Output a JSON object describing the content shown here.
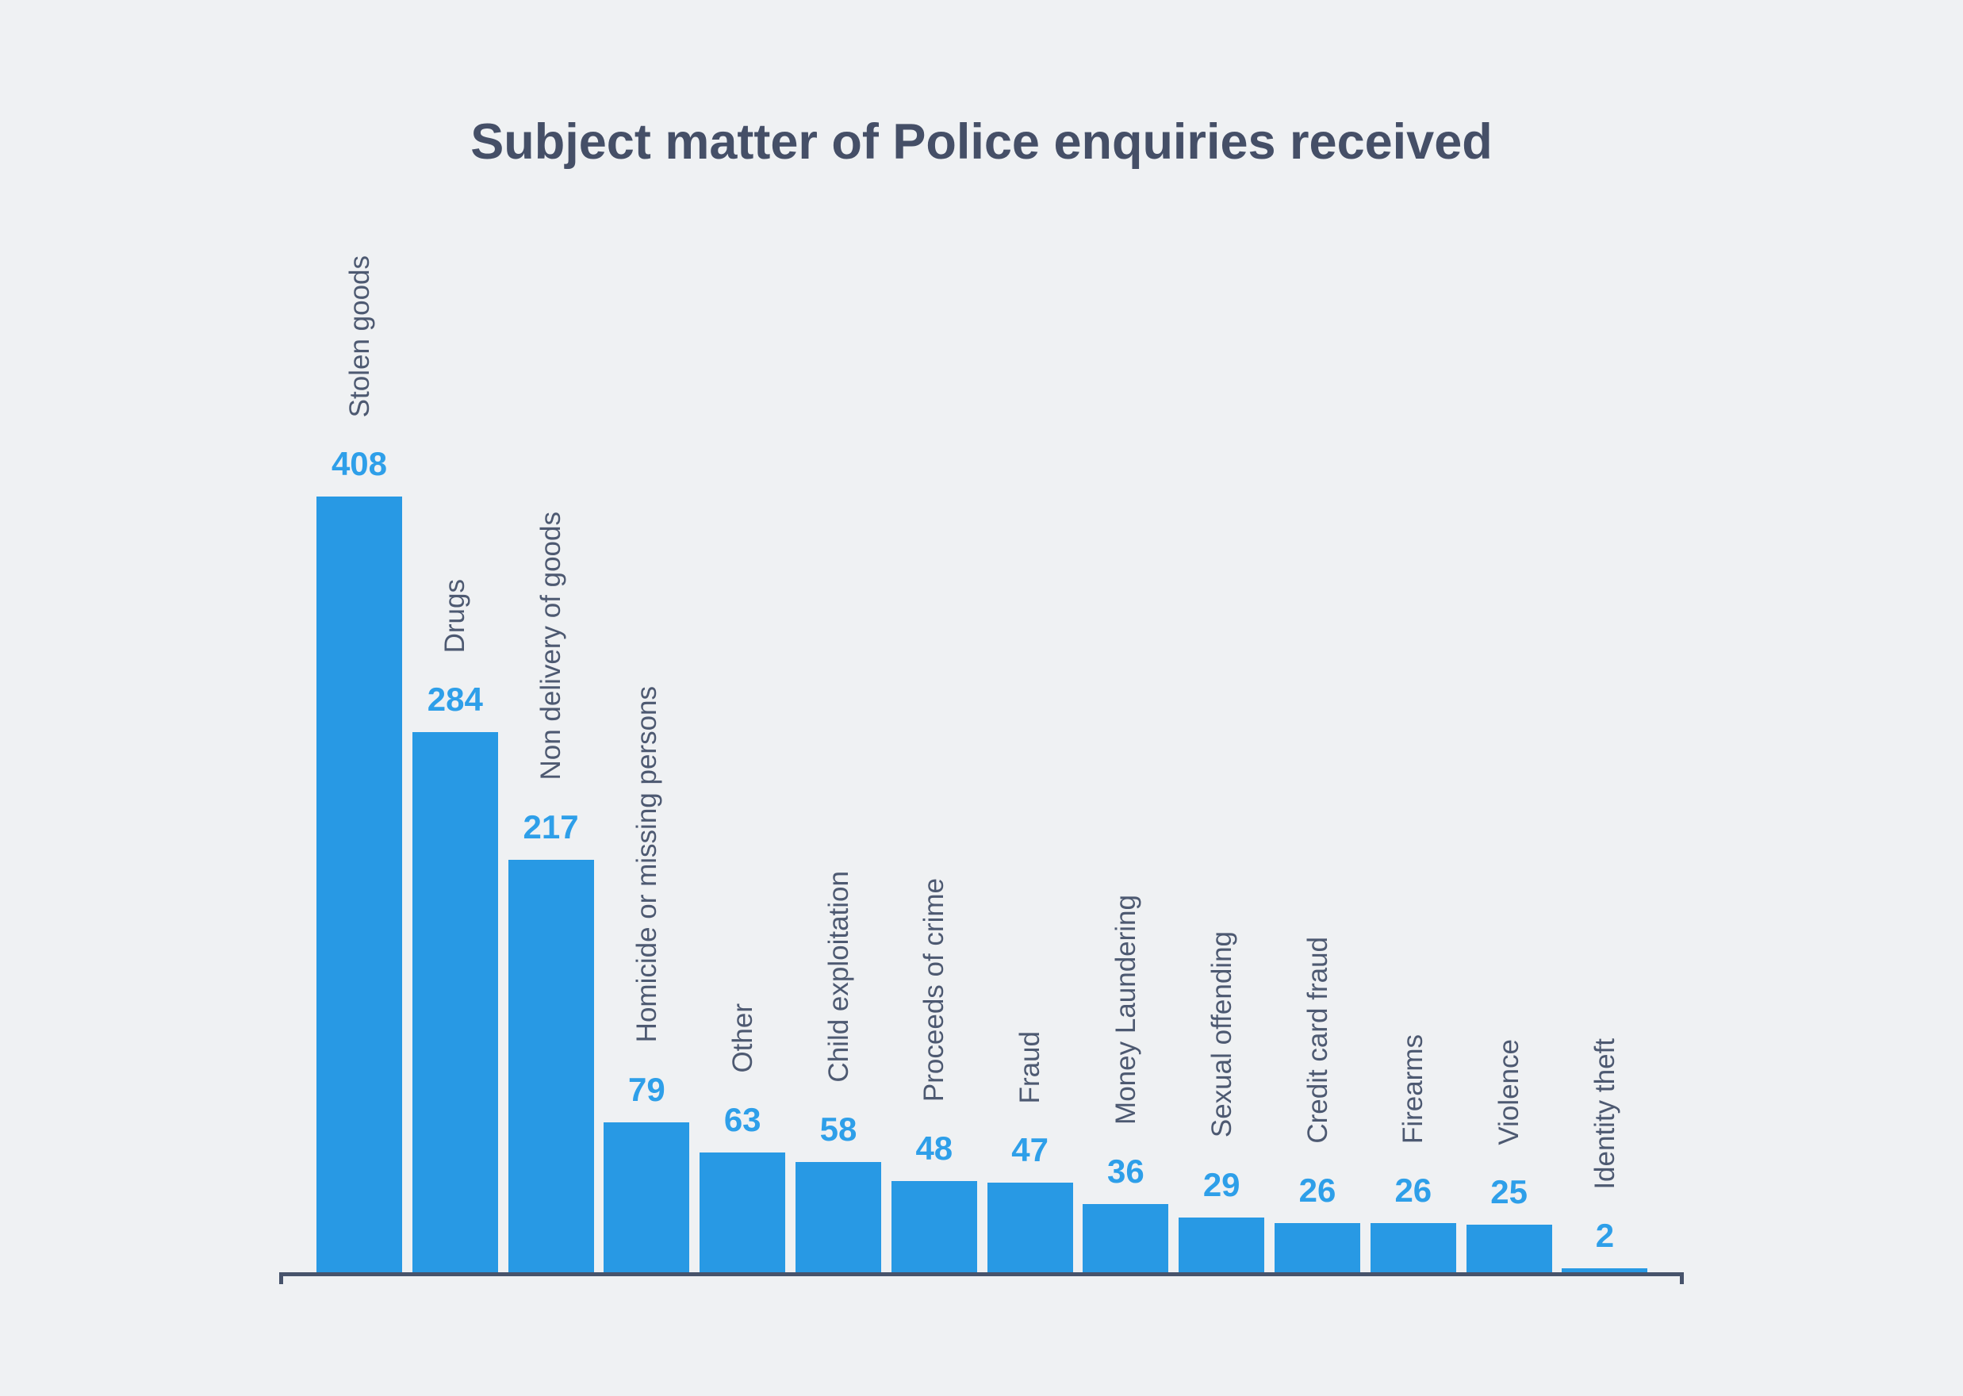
{
  "chart_data": {
    "type": "bar",
    "title": "Subject matter of Police enquiries received",
    "categories": [
      "Stolen goods",
      "Drugs",
      "Non delivery of goods",
      "Homicide or missing persons",
      "Other",
      "Child exploitation",
      "Proceeds of crime",
      "Fraud",
      "Money Laundering",
      "Sexual offending",
      "Credit card fraud",
      "Firearms",
      "Violence",
      "Identity theft"
    ],
    "values": [
      408,
      284,
      217,
      79,
      63,
      58,
      48,
      47,
      36,
      29,
      26,
      26,
      25,
      2
    ],
    "xlabel": "",
    "ylabel": "",
    "ylim": [
      0,
      408
    ],
    "grid": false,
    "legend": "none",
    "value_labels_shown": true,
    "category_label_rotation": "vertical-bottom-to-top"
  },
  "colors": {
    "background": "#EFF1F3",
    "bar": "#2899E4",
    "value_label": "#2E9FE9",
    "category_label": "#4D5971",
    "title": "#454F67",
    "axis": "#47536B"
  }
}
